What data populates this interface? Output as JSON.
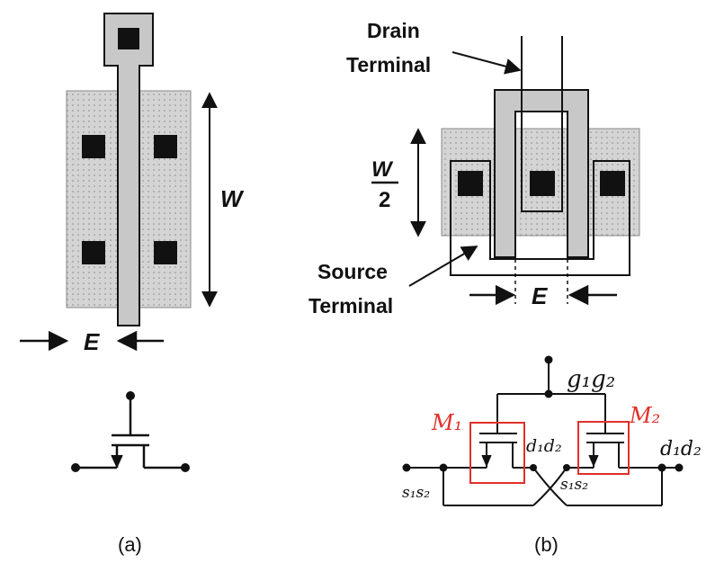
{
  "panel_a": {
    "width_label": "W",
    "length_label": "E",
    "caption": "(a)"
  },
  "panel_b": {
    "drain_label_line1": "Drain",
    "drain_label_line2": "Terminal",
    "width_label_num": "W",
    "width_label_den": "2",
    "source_label_line1": "Source",
    "source_label_line2": "Terminal",
    "length_label": "E",
    "caption": "(b)",
    "gate_node": "g₁g₂",
    "m1_label": "M₁",
    "m2_label": "M₂",
    "drain_node_inner": "d₁d₂",
    "drain_node_outer": "d₁d₂",
    "source_node_left": "s₁s₂",
    "source_node_right": "s₁s₂"
  },
  "colors": {
    "diffusion": "#cfcfcf",
    "poly": "#c8c8c8",
    "contact": "#111111",
    "annotation_red": "#e0302a"
  }
}
